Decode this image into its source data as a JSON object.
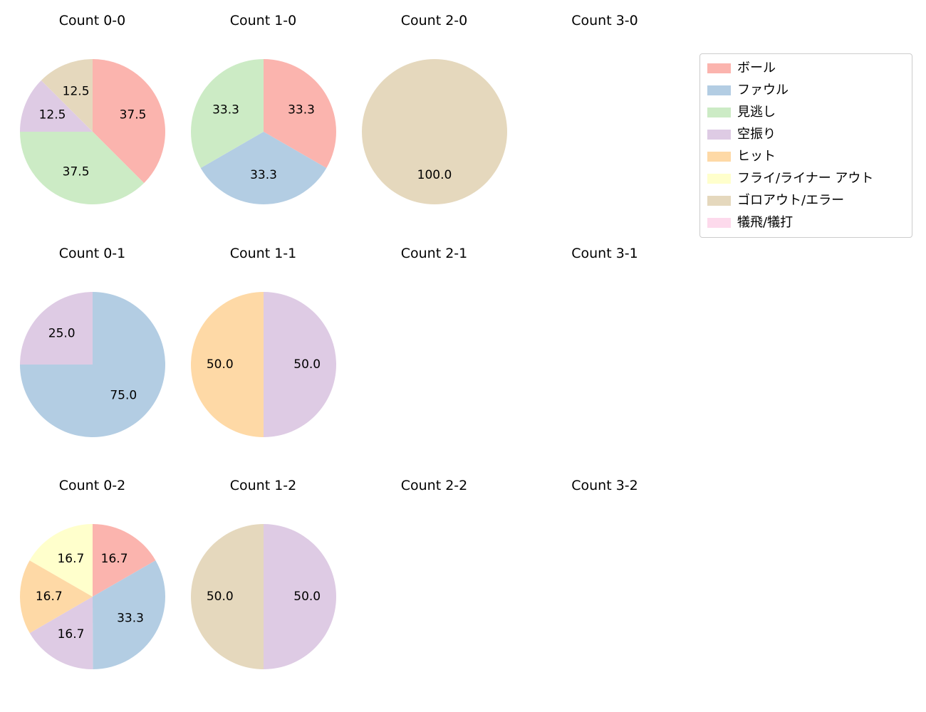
{
  "figure": {
    "background": "#ffffff"
  },
  "legend": {
    "entries": [
      {
        "label": "ボール",
        "color": "#fbb4ae"
      },
      {
        "label": "ファウル",
        "color": "#b3cde3"
      },
      {
        "label": "見逃し",
        "color": "#ccebc5"
      },
      {
        "label": "空振り",
        "color": "#decbe4"
      },
      {
        "label": "ヒット",
        "color": "#fed9a6"
      },
      {
        "label": "フライ/ライナー アウト",
        "color": "#ffffcc"
      },
      {
        "label": "ゴロアウト/エラー",
        "color": "#e5d8bd"
      },
      {
        "label": "犠飛/犠打",
        "color": "#fddaec"
      }
    ]
  },
  "chart_data": [
    {
      "type": "pie",
      "title": "Count 0-0",
      "start_angle": 90,
      "direction": "clockwise",
      "slices": [
        {
          "label": "ボール",
          "value": 37.5,
          "text": "37.5"
        },
        {
          "label": "見逃し",
          "value": 37.5,
          "text": "37.5"
        },
        {
          "label": "空振り",
          "value": 12.5,
          "text": "12.5"
        },
        {
          "label": "ゴロアウト/エラー",
          "value": 12.5,
          "text": "12.5"
        }
      ]
    },
    {
      "type": "pie",
      "title": "Count 1-0",
      "start_angle": 90,
      "direction": "clockwise",
      "slices": [
        {
          "label": "ボール",
          "value": 33.3,
          "text": "33.3"
        },
        {
          "label": "ファウル",
          "value": 33.3,
          "text": "33.3"
        },
        {
          "label": "見逃し",
          "value": 33.3,
          "text": "33.3"
        }
      ]
    },
    {
      "type": "pie",
      "title": "Count 2-0",
      "start_angle": 90,
      "direction": "clockwise",
      "slices": [
        {
          "label": "ゴロアウト/エラー",
          "value": 100.0,
          "text": "100.0"
        }
      ]
    },
    {
      "type": "pie",
      "title": "Count 3-0",
      "start_angle": 90,
      "direction": "clockwise",
      "slices": []
    },
    {
      "type": "pie",
      "title": "Count 0-1",
      "start_angle": 90,
      "direction": "clockwise",
      "slices": [
        {
          "label": "ファウル",
          "value": 75.0,
          "text": "75.0"
        },
        {
          "label": "空振り",
          "value": 25.0,
          "text": "25.0"
        }
      ]
    },
    {
      "type": "pie",
      "title": "Count 1-1",
      "start_angle": 90,
      "direction": "clockwise",
      "slices": [
        {
          "label": "空振り",
          "value": 50.0,
          "text": "50.0"
        },
        {
          "label": "ヒット",
          "value": 50.0,
          "text": "50.0"
        }
      ]
    },
    {
      "type": "pie",
      "title": "Count 2-1",
      "start_angle": 90,
      "direction": "clockwise",
      "slices": []
    },
    {
      "type": "pie",
      "title": "Count 3-1",
      "start_angle": 90,
      "direction": "clockwise",
      "slices": []
    },
    {
      "type": "pie",
      "title": "Count 0-2",
      "start_angle": 90,
      "direction": "clockwise",
      "slices": [
        {
          "label": "ボール",
          "value": 16.7,
          "text": "16.7"
        },
        {
          "label": "ファウル",
          "value": 33.3,
          "text": "33.3"
        },
        {
          "label": "空振り",
          "value": 16.7,
          "text": "16.7"
        },
        {
          "label": "ヒット",
          "value": 16.7,
          "text": "16.7"
        },
        {
          "label": "フライ/ライナー アウト",
          "value": 16.7,
          "text": "16.7"
        }
      ]
    },
    {
      "type": "pie",
      "title": "Count 1-2",
      "start_angle": 90,
      "direction": "clockwise",
      "slices": [
        {
          "label": "空振り",
          "value": 50.0,
          "text": "50.0"
        },
        {
          "label": "ゴロアウト/エラー",
          "value": 50.0,
          "text": "50.0"
        }
      ]
    },
    {
      "type": "pie",
      "title": "Count 2-2",
      "start_angle": 90,
      "direction": "clockwise",
      "slices": []
    },
    {
      "type": "pie",
      "title": "Count 3-2",
      "start_angle": 90,
      "direction": "clockwise",
      "slices": []
    }
  ]
}
